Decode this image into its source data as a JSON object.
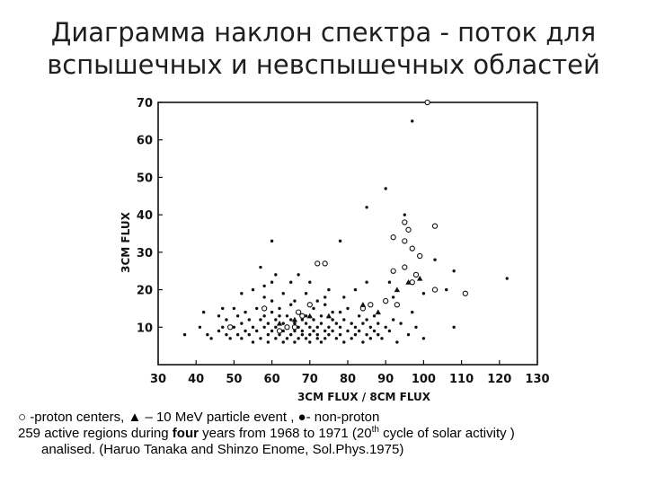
{
  "title": {
    "line1": "Диаграмма наклон спектра - поток для",
    "line2": "вспышечных и невспышечных областей"
  },
  "caption": {
    "line1": "○ -proton centers, ▲ – 10 MeV particle event , ●- non-proton",
    "line2_pre": "259 active regions during ",
    "line2_bold": "four",
    "line2_mid": " years from 1968 to 1971 (20",
    "line2_sup": "th",
    "line2_post": " cycle of solar activity )",
    "line3": "analised. (Haruo Tanaka and Shinzo Enome, Sol.Phys.1975)"
  },
  "chart_data": {
    "type": "scatter",
    "xlabel": "3CM FLUX / 8CM FLUX",
    "ylabel": "3CM FLUX",
    "xlim": [
      30,
      130
    ],
    "ylim": [
      0,
      70
    ],
    "x_ticks": [
      "30",
      "40",
      "50",
      "60",
      "70",
      "80",
      "90",
      "100",
      "110",
      "120",
      "130"
    ],
    "y_ticks": [
      "10",
      "20",
      "30",
      "40",
      "50",
      "60",
      "70"
    ],
    "series": [
      {
        "marker": "filled-circle",
        "color": "#111111",
        "points": [
          [
            37,
            8
          ],
          [
            41,
            10
          ],
          [
            42,
            14
          ],
          [
            43,
            8
          ],
          [
            44,
            7
          ],
          [
            46,
            9
          ],
          [
            46,
            13
          ],
          [
            47,
            15
          ],
          [
            47,
            10
          ],
          [
            48,
            8
          ],
          [
            48,
            12
          ],
          [
            49,
            7
          ],
          [
            50,
            10
          ],
          [
            50,
            15
          ],
          [
            51,
            13
          ],
          [
            51,
            8
          ],
          [
            52,
            11
          ],
          [
            52,
            7
          ],
          [
            53,
            9
          ],
          [
            53,
            14
          ],
          [
            54,
            12
          ],
          [
            54,
            8
          ],
          [
            55,
            10
          ],
          [
            55,
            6
          ],
          [
            56,
            15
          ],
          [
            56,
            9
          ],
          [
            57,
            12
          ],
          [
            57,
            7
          ],
          [
            58,
            18
          ],
          [
            58,
            10
          ],
          [
            58,
            13
          ],
          [
            59,
            8
          ],
          [
            59,
            11
          ],
          [
            59,
            6
          ],
          [
            60,
            9
          ],
          [
            60,
            14
          ],
          [
            60,
            17
          ],
          [
            61,
            10
          ],
          [
            61,
            7
          ],
          [
            61,
            12
          ],
          [
            62,
            13
          ],
          [
            62,
            8
          ],
          [
            62,
            15
          ],
          [
            63,
            9
          ],
          [
            63,
            11
          ],
          [
            63,
            6
          ],
          [
            64,
            10
          ],
          [
            64,
            13
          ],
          [
            64,
            7
          ],
          [
            65,
            12
          ],
          [
            65,
            8
          ],
          [
            65,
            16
          ],
          [
            66,
            9
          ],
          [
            66,
            11
          ],
          [
            66,
            6
          ],
          [
            67,
            10
          ],
          [
            67,
            14
          ],
          [
            67,
            7
          ],
          [
            68,
            12
          ],
          [
            68,
            8
          ],
          [
            68,
            9
          ],
          [
            69,
            11
          ],
          [
            69,
            7
          ],
          [
            69,
            13
          ],
          [
            70,
            10
          ],
          [
            70,
            8
          ],
          [
            70,
            6
          ],
          [
            71,
            9
          ],
          [
            71,
            12
          ],
          [
            71,
            15
          ],
          [
            72,
            7
          ],
          [
            72,
            10
          ],
          [
            72,
            8
          ],
          [
            73,
            11
          ],
          [
            73,
            6
          ],
          [
            73,
            13
          ],
          [
            74,
            9
          ],
          [
            74,
            7
          ],
          [
            74,
            16
          ],
          [
            75,
            10
          ],
          [
            75,
            8
          ],
          [
            76,
            12
          ],
          [
            76,
            9
          ],
          [
            77,
            7
          ],
          [
            77,
            11
          ],
          [
            78,
            14
          ],
          [
            78,
            8
          ],
          [
            78,
            10
          ],
          [
            79,
            6
          ],
          [
            79,
            12
          ],
          [
            80,
            9
          ],
          [
            80,
            15
          ],
          [
            81,
            7
          ],
          [
            81,
            11
          ],
          [
            82,
            10
          ],
          [
            82,
            8
          ],
          [
            83,
            13
          ],
          [
            83,
            9
          ],
          [
            84,
            6
          ],
          [
            84,
            11
          ],
          [
            85,
            8
          ],
          [
            85,
            12
          ],
          [
            86,
            10
          ],
          [
            86,
            7
          ],
          [
            87,
            9
          ],
          [
            87,
            13
          ],
          [
            88,
            11
          ],
          [
            88,
            8
          ],
          [
            89,
            7
          ],
          [
            90,
            10
          ],
          [
            91,
            9
          ],
          [
            92,
            12
          ],
          [
            93,
            6
          ],
          [
            94,
            11
          ],
          [
            96,
            8
          ],
          [
            97,
            14
          ],
          [
            98,
            10
          ],
          [
            100,
            7
          ],
          [
            58,
            21
          ],
          [
            60,
            22
          ],
          [
            65,
            22
          ],
          [
            67,
            24
          ],
          [
            61,
            24
          ],
          [
            55,
            20
          ],
          [
            52,
            19
          ],
          [
            57,
            26
          ],
          [
            60,
            33
          ],
          [
            70,
            22
          ],
          [
            75,
            20
          ],
          [
            78,
            33
          ],
          [
            82,
            20
          ],
          [
            85,
            22
          ],
          [
            85,
            42
          ],
          [
            90,
            47
          ],
          [
            95,
            40
          ],
          [
            97,
            65
          ],
          [
            100,
            19
          ],
          [
            103,
            28
          ],
          [
            106,
            20
          ],
          [
            108,
            10
          ],
          [
            108,
            25
          ],
          [
            122,
            23
          ],
          [
            91,
            22
          ],
          [
            92,
            18
          ],
          [
            74,
            18
          ],
          [
            76,
            14
          ],
          [
            79,
            18
          ],
          [
            63,
            19
          ],
          [
            66,
            17
          ],
          [
            69,
            19
          ],
          [
            72,
            17
          ]
        ]
      },
      {
        "marker": "open-circle",
        "color": "#111111",
        "points": [
          [
            101,
            70
          ],
          [
            95,
            38
          ],
          [
            95,
            33
          ],
          [
            96,
            36
          ],
          [
            97,
            31
          ],
          [
            99,
            29
          ],
          [
            98,
            24
          ],
          [
            95,
            26
          ],
          [
            97,
            22
          ],
          [
            103,
            20
          ],
          [
            103,
            37
          ],
          [
            111,
            19
          ],
          [
            92,
            25
          ],
          [
            93,
            16
          ],
          [
            90,
            17
          ],
          [
            86,
            16
          ],
          [
            84,
            15
          ],
          [
            72,
            27
          ],
          [
            74,
            27
          ],
          [
            70,
            16
          ],
          [
            68,
            13
          ],
          [
            62,
            9
          ],
          [
            64,
            10
          ],
          [
            66,
            10
          ],
          [
            67,
            14
          ],
          [
            49,
            10
          ],
          [
            58,
            15
          ],
          [
            92,
            34
          ]
        ]
      },
      {
        "marker": "triangle",
        "color": "#111111",
        "points": [
          [
            96,
            22
          ],
          [
            99,
            23
          ],
          [
            93,
            20
          ],
          [
            88,
            14
          ],
          [
            84,
            16
          ],
          [
            75,
            13
          ],
          [
            70,
            13
          ],
          [
            66,
            12
          ],
          [
            62,
            11
          ]
        ]
      }
    ]
  }
}
